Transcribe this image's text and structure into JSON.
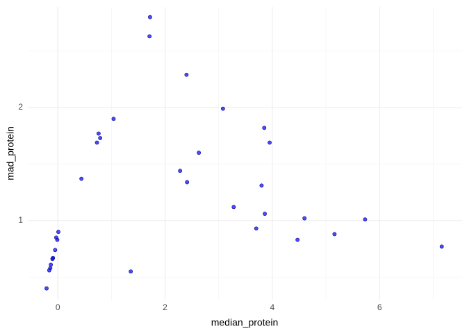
{
  "chart_data": {
    "type": "scatter",
    "x_label": "median_protein",
    "y_label": "mad_protein",
    "xlim": [
      -0.56,
      7.54
    ],
    "ylim": [
      0.3,
      2.89
    ],
    "xticks": [
      0,
      2,
      4,
      6
    ],
    "yticks": [
      1,
      2
    ],
    "xminor": [
      1,
      3,
      5,
      7
    ],
    "yminor": [
      0.5,
      1.5,
      2.5
    ],
    "grid": true,
    "color": "#0000ff",
    "series": [
      {
        "x": [
          1.72,
          1.71,
          2.4,
          3.08,
          1.04,
          0.76,
          0.79,
          0.73,
          3.85,
          3.95,
          2.63,
          2.28,
          2.41,
          0.44,
          3.8,
          3.28,
          3.86,
          3.7,
          4.6,
          5.73,
          5.16,
          4.47,
          7.16,
          1.36,
          0.01,
          -0.01,
          -0.03,
          -0.05,
          -0.09,
          -0.1,
          -0.13,
          -0.14,
          -0.16,
          -0.21
        ],
        "values": [
          2.8,
          2.63,
          2.29,
          1.99,
          1.9,
          1.77,
          1.73,
          1.69,
          1.82,
          1.69,
          1.6,
          1.44,
          1.34,
          1.37,
          1.31,
          1.12,
          1.06,
          0.93,
          1.02,
          1.01,
          0.88,
          0.83,
          0.77,
          0.55,
          0.9,
          0.83,
          0.85,
          0.74,
          0.67,
          0.66,
          0.61,
          0.58,
          0.56,
          0.4
        ]
      }
    ]
  }
}
